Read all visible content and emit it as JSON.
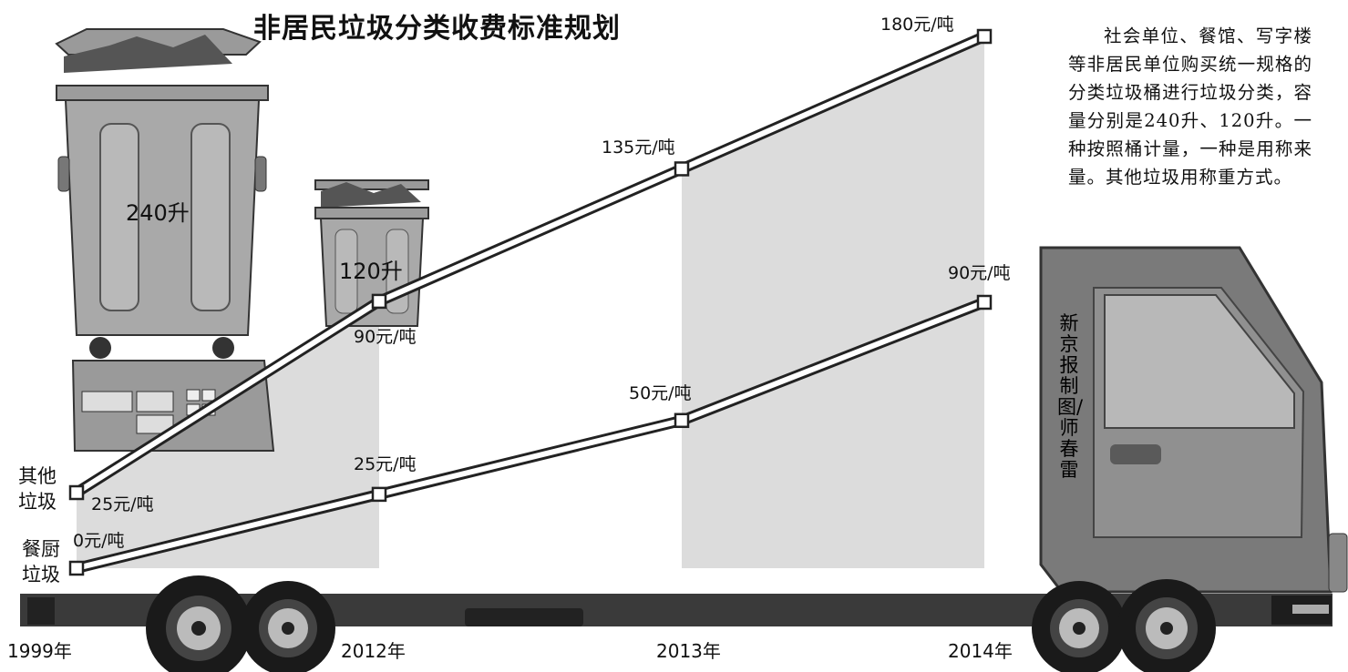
{
  "title": "非居民垃圾分类收费标准规划",
  "note": "社会单位、餐馆、写字楼等非居民单位购买统一规格的分类垃圾桶进行垃圾分类，容量分别是240升、120升。一种按照桶计量，一种是用称来量。其他垃圾用称重方式。",
  "credit": "新京报制图/师春雷",
  "bins": {
    "large": "240升",
    "small": "120升"
  },
  "colors": {
    "line": "#2a2a2a",
    "shade": "#dcdcdc",
    "truck": "#6e6e6e"
  },
  "chart_data": {
    "type": "line",
    "categories": [
      "1999年",
      "2012年",
      "2013年",
      "2014年"
    ],
    "series": [
      {
        "name": "其他垃圾",
        "values": [
          25,
          90,
          135,
          180
        ],
        "labels": [
          "25元/吨",
          "90元/吨",
          "135元/吨",
          "180元/吨"
        ]
      },
      {
        "name": "餐厨垃圾",
        "values": [
          0,
          25,
          50,
          90
        ],
        "labels": [
          "0元/吨",
          "25元/吨",
          "50元/吨",
          "90元/吨"
        ]
      }
    ],
    "ylim": [
      0,
      180
    ]
  }
}
